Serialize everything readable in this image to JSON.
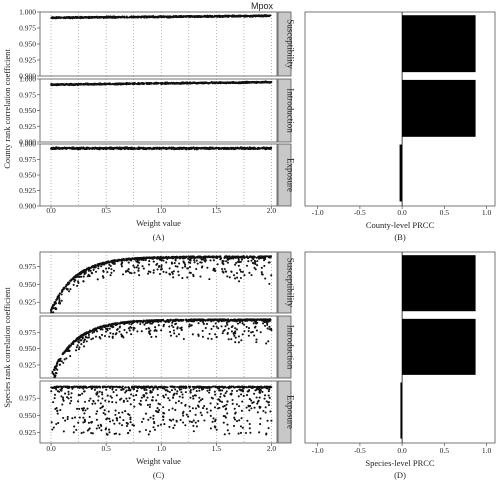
{
  "title": "Mpox",
  "strip_labels": [
    "Susceptibility",
    "Introduction",
    "Exposure"
  ],
  "chart_data": [
    {
      "id": "A",
      "type": "scatter",
      "caption": "(A)",
      "xlabel": "Weight value",
      "ylabel": "County rank correlation coefficient",
      "xlim": [
        -0.1,
        2.05
      ],
      "x_ticks": [
        "0.0",
        "0.5",
        "1.0",
        "1.5",
        "2.0"
      ],
      "x_tick_values": [
        0,
        0.5,
        1,
        1.5,
        2
      ],
      "vlines": [
        0,
        0.25,
        0.5,
        0.75,
        1,
        1.25,
        1.5,
        1.75,
        2
      ],
      "panels": [
        {
          "name": "Susceptibility",
          "ylim": [
            0.9,
            1.0
          ],
          "y_ticks": [
            "0.900",
            "0.925",
            "0.950",
            "0.975",
            "1.000"
          ],
          "y_tick_values": [
            0.9,
            0.925,
            0.95,
            0.975,
            1.0
          ],
          "points": {
            "x_range": [
              0,
              2
            ],
            "count": 800,
            "trend": [
              0.991,
              0.994
            ],
            "spread": 0.0015,
            "pattern": "flat"
          }
        },
        {
          "name": "Introduction",
          "ylim": [
            0.9,
            1.0
          ],
          "y_ticks": [
            "0.900",
            "0.925",
            "0.950",
            "0.975",
            "1.000"
          ],
          "y_tick_values": [
            0.9,
            0.925,
            0.95,
            0.975,
            1.0
          ],
          "points": {
            "x_range": [
              0,
              2
            ],
            "count": 800,
            "trend": [
              0.991,
              0.995
            ],
            "spread": 0.0015,
            "pattern": "flat"
          }
        },
        {
          "name": "Exposure",
          "ylim": [
            0.9,
            1.0
          ],
          "y_ticks": [
            "0.900",
            "0.925",
            "0.950",
            "0.975",
            "1.000"
          ],
          "y_tick_values": [
            0.9,
            0.925,
            0.95,
            0.975,
            1.0
          ],
          "points": {
            "x_range": [
              0,
              2
            ],
            "count": 800,
            "trend": [
              0.993,
              0.993
            ],
            "spread": 0.002,
            "pattern": "flat"
          }
        }
      ]
    },
    {
      "id": "B",
      "type": "bar",
      "orientation": "horizontal",
      "caption": "(B)",
      "xlabel": "County-level PRCC",
      "xlim": [
        -1.15,
        1.1
      ],
      "x_ticks": [
        "-1.0",
        "-0.5",
        "0.0",
        "0.5",
        "1.0"
      ],
      "x_tick_values": [
        -1,
        -0.5,
        0,
        0.5,
        1
      ],
      "categories": [
        "Susceptibility",
        "Introduction",
        "Exposure"
      ],
      "values": [
        0.87,
        0.87,
        -0.03
      ]
    },
    {
      "id": "C",
      "type": "scatter",
      "caption": "(C)",
      "xlabel": "Weight value",
      "ylabel": "Species rank correlation coefficient",
      "xlim": [
        -0.1,
        2.05
      ],
      "x_ticks": [
        "0.0",
        "0.5",
        "1.0",
        "1.5",
        "2.0"
      ],
      "x_tick_values": [
        0,
        0.5,
        1,
        1.5,
        2
      ],
      "vlines": [
        0,
        0.25,
        0.5,
        0.75,
        1,
        1.25,
        1.5,
        1.75,
        2
      ],
      "panels": [
        {
          "name": "Susceptibility",
          "ylim": [
            0.91,
            0.995
          ],
          "y_ticks": [
            "0.925",
            "0.950",
            "0.975"
          ],
          "y_tick_values": [
            0.925,
            0.95,
            0.975
          ],
          "points": {
            "x_range": [
              0,
              2
            ],
            "count": 900,
            "trend": [
              0.915,
              0.989
            ],
            "spread": 0.04,
            "pattern": "saturating"
          }
        },
        {
          "name": "Introduction",
          "ylim": [
            0.905,
            1.0
          ],
          "y_ticks": [
            "0.925",
            "0.950",
            "0.975"
          ],
          "y_tick_values": [
            0.925,
            0.95,
            0.975
          ],
          "points": {
            "x_range": [
              0,
              2
            ],
            "count": 900,
            "trend": [
              0.91,
              0.995
            ],
            "spread": 0.04,
            "pattern": "saturating"
          }
        },
        {
          "name": "Exposure",
          "ylim": [
            0.91,
            1.0
          ],
          "y_ticks": [
            "0.925",
            "0.950",
            "0.975"
          ],
          "y_tick_values": [
            0.925,
            0.95,
            0.975
          ],
          "points": {
            "x_range": [
              0,
              2
            ],
            "count": 900,
            "trend": [
              0.992,
              0.992
            ],
            "spread": 0.07,
            "pattern": "band"
          }
        }
      ]
    },
    {
      "id": "D",
      "type": "bar",
      "orientation": "horizontal",
      "caption": "(D)",
      "xlabel": "Species-level PRCC",
      "xlim": [
        -1.15,
        1.1
      ],
      "x_ticks": [
        "-1.0",
        "-0.5",
        "0.0",
        "0.5",
        "1.0"
      ],
      "x_tick_values": [
        -1,
        -0.5,
        0,
        0.5,
        1
      ],
      "categories": [
        "Susceptibility",
        "Introduction",
        "Exposure"
      ],
      "values": [
        0.87,
        0.87,
        -0.02
      ]
    }
  ]
}
